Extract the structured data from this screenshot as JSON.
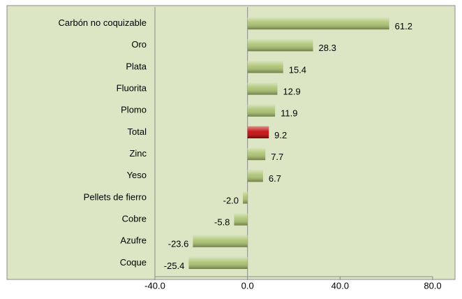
{
  "chart_data": {
    "type": "barh",
    "categories": [
      "Carbón no coquizable",
      "Oro",
      "Plata",
      "Fluorita",
      "Plomo",
      "Total",
      "Zinc",
      "Yeso",
      "Pellets de fierro",
      "Cobre",
      "Azufre",
      "Coque"
    ],
    "values": [
      61.2,
      28.3,
      15.4,
      12.9,
      11.9,
      9.2,
      7.7,
      6.7,
      -2.0,
      -5.8,
      -23.6,
      -25.4
    ],
    "value_labels": [
      "61.2",
      "28.3",
      "15.4",
      "12.9",
      "11.9",
      "9.2",
      "7.7",
      "6.7",
      "-2.0",
      "-5.8",
      "-23.6",
      "-25.4"
    ],
    "colors": [
      "#a8c06a",
      "#a8c06a",
      "#a8c06a",
      "#a8c06a",
      "#a8c06a",
      "#c00000",
      "#a8c06a",
      "#a8c06a",
      "#a8c06a",
      "#a8c06a",
      "#a8c06a",
      "#a8c06a"
    ],
    "xlim": [
      -40,
      80
    ],
    "xticks": [
      {
        "value": -40,
        "label": "-40.0"
      },
      {
        "value": 0,
        "label": "0.0"
      },
      {
        "value": 40,
        "label": "40.0"
      },
      {
        "value": 80,
        "label": "80.0"
      }
    ]
  }
}
